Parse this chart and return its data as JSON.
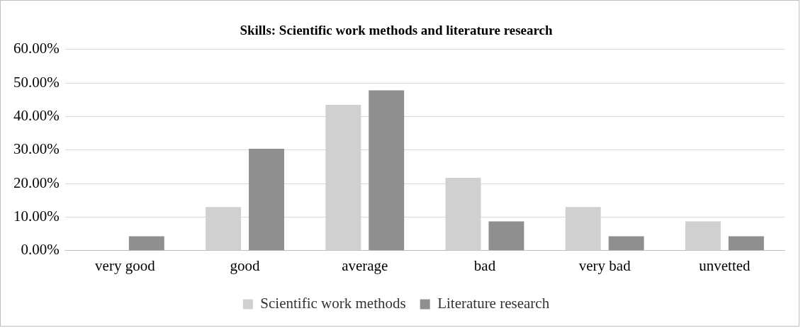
{
  "chart_data": {
    "type": "bar",
    "title": "Skills: Scientific work methods and literature research",
    "categories": [
      "very good",
      "good",
      "average",
      "bad",
      "very bad",
      "unvetted"
    ],
    "series": [
      {
        "name": "Scientific work methods",
        "color": "#d0d0d0",
        "values": [
          0,
          13.0,
          43.5,
          21.7,
          13.0,
          8.7
        ]
      },
      {
        "name": "Literature research",
        "color": "#8f8f8f",
        "values": [
          4.3,
          30.4,
          47.8,
          8.7,
          4.3,
          4.3
        ]
      }
    ],
    "ylim": [
      0,
      60
    ],
    "yticks": [
      {
        "value": 0,
        "label": "0.00%"
      },
      {
        "value": 10,
        "label": "10.00%"
      },
      {
        "value": 20,
        "label": "20.00%"
      },
      {
        "value": 30,
        "label": "30.00%"
      },
      {
        "value": 40,
        "label": "40.00%"
      },
      {
        "value": 50,
        "label": "50.00%"
      },
      {
        "value": 60,
        "label": "60.00%"
      }
    ],
    "grid": "y",
    "legend": "bottom"
  }
}
